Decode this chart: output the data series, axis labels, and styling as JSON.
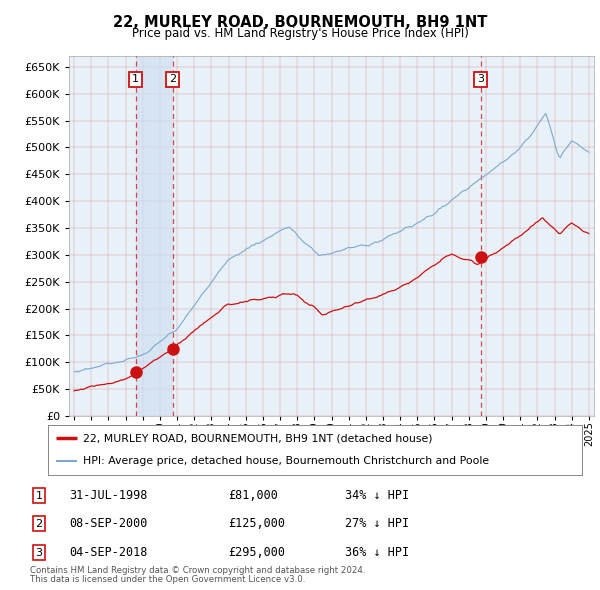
{
  "title": "22, MURLEY ROAD, BOURNEMOUTH, BH9 1NT",
  "subtitle": "Price paid vs. HM Land Registry's House Price Index (HPI)",
  "transactions": [
    {
      "num": 1,
      "date": "31-JUL-1998",
      "year": 1998.58,
      "price": 81000,
      "hpi_pct": "34% ↓ HPI"
    },
    {
      "num": 2,
      "date": "08-SEP-2000",
      "year": 2000.75,
      "price": 125000,
      "hpi_pct": "27% ↓ HPI"
    },
    {
      "num": 3,
      "date": "04-SEP-2018",
      "year": 2018.69,
      "price": 295000,
      "hpi_pct": "36% ↓ HPI"
    }
  ],
  "legend_line1": "22, MURLEY ROAD, BOURNEMOUTH, BH9 1NT (detached house)",
  "legend_line2": "HPI: Average price, detached house, Bournemouth Christchurch and Poole",
  "footer1": "Contains HM Land Registry data © Crown copyright and database right 2024.",
  "footer2": "This data is licensed under the Open Government Licence v3.0.",
  "hpi_color": "#7aaad0",
  "price_color": "#cc1111",
  "plot_bg": "#e8f0f8",
  "grid_color": "#cc4444",
  "shade_color": "#d0dff0",
  "ylim": [
    0,
    670000
  ],
  "xlim": [
    1994.7,
    2025.3
  ]
}
